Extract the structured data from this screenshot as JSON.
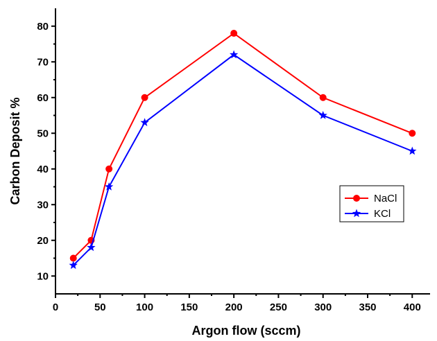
{
  "chart_data": {
    "type": "line",
    "xlabel": "Argon flow (sccm)",
    "ylabel": "Carbon Deposit %",
    "xlim": [
      0,
      420
    ],
    "ylim": [
      5,
      85
    ],
    "xticks": [
      0,
      50,
      100,
      150,
      200,
      250,
      300,
      350,
      400
    ],
    "yticks": [
      10,
      20,
      30,
      40,
      50,
      60,
      70,
      80
    ],
    "x": [
      20,
      40,
      60,
      100,
      200,
      300,
      400
    ],
    "series": [
      {
        "name": "NaCl",
        "color": "#ff0000",
        "marker": "circle",
        "values": [
          15,
          20,
          40,
          60,
          78,
          60,
          50
        ]
      },
      {
        "name": "KCl",
        "color": "#0000ff",
        "marker": "star",
        "values": [
          13,
          18,
          35,
          53,
          72,
          55,
          45
        ]
      }
    ],
    "legend_position": "right",
    "grid": false
  }
}
